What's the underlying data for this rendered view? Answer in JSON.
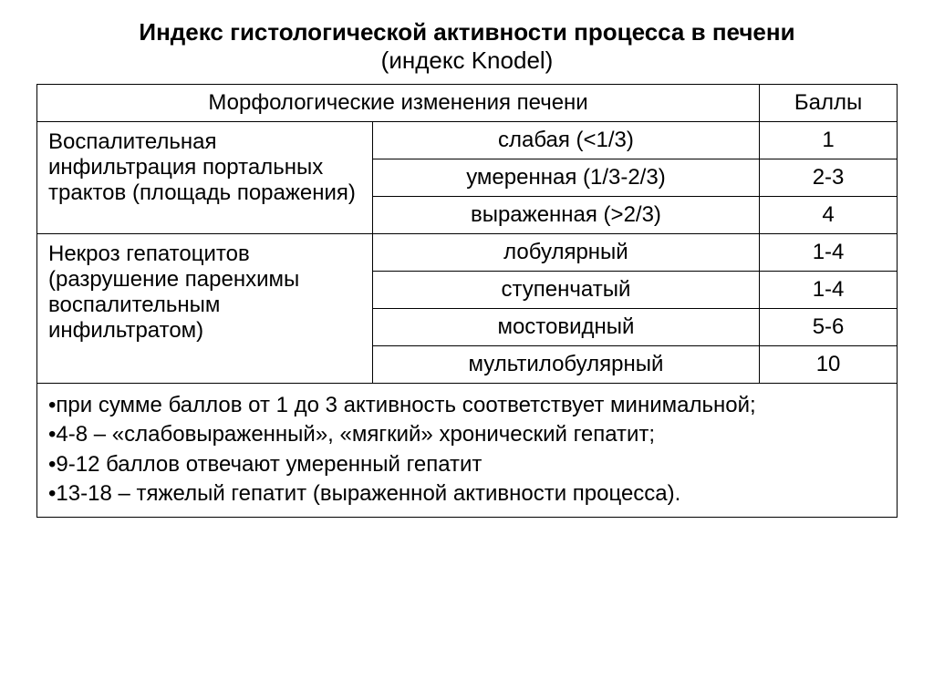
{
  "title": {
    "line1": "Индекс гистологической активности процесса в печени",
    "line2": "(индекс Knodel)"
  },
  "header": {
    "morph": "Морфологические изменения печени",
    "score": "Баллы"
  },
  "group1": {
    "category": "Воспалительная инфильтрация портальных трактов (площадь поражения)",
    "rows": [
      {
        "sub": "слабая (<1/3)",
        "score": "1"
      },
      {
        "sub": "умеренная (1/3-2/3)",
        "score": "2-3"
      },
      {
        "sub": "выраженная (>2/3)",
        "score": "4"
      }
    ]
  },
  "group2": {
    "category": "Некроз гепатоцитов (разрушение паренхимы воспалительным инфильтратом)",
    "rows": [
      {
        "sub": "лобулярный",
        "score": "1-4"
      },
      {
        "sub": "ступенчатый",
        "score": "1-4"
      },
      {
        "sub": "мостовидный",
        "score": "5-6"
      },
      {
        "sub": "мультилобулярный",
        "score": "10"
      }
    ]
  },
  "notes": [
    "•при сумме баллов от 1 до 3 активность соответствует минимальной;",
    "•4-8 – «слабовыраженный», «мягкий» хронический гепатит;",
    "•9-12 баллов отвечают умеренный гепатит",
    "•13-18 – тяжелый гепатит (выраженной активности процесса)."
  ]
}
